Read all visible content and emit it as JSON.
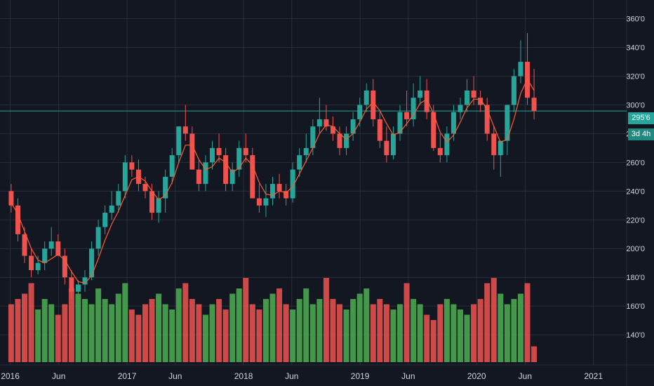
{
  "chart_data": {
    "type": "candlestick",
    "title": "",
    "xlabel": "",
    "ylabel": "",
    "ylim": [
      121,
      373
    ],
    "grid": true,
    "y_ticks": [
      "360'0",
      "340'0",
      "320'0",
      "300'0",
      "280'0",
      "260'0",
      "240'0",
      "220'0",
      "200'0",
      "180'0",
      "160'0",
      "140'0"
    ],
    "x_ticks": [
      "2016",
      "Jun",
      "2017",
      "Jun",
      "2018",
      "Jun",
      "2019",
      "Jun",
      "2020",
      "Jun",
      "2021"
    ],
    "last_price_label": "295'6",
    "countdown_label": "3d 4h",
    "colors": {
      "background": "#131722",
      "grid": "#2a2e39",
      "up": "#26a69a",
      "down": "#ef5350",
      "volume_up": "#4caf50",
      "volume_down": "#ef5350",
      "moving_average": "#ff5c33",
      "price_line": "#26a69a",
      "axis_text": "#d1d4dc"
    },
    "series": [
      {
        "name": "",
        "kind": "ohlc",
        "x": [
          "2016-01-04",
          "2016-01-25",
          "2016-02-15",
          "2016-03-07",
          "2016-03-28",
          "2016-04-18",
          "2016-05-09",
          "2016-05-30",
          "2016-06-20",
          "2016-07-11",
          "2016-08-01",
          "2016-08-22",
          "2016-09-12",
          "2016-10-03",
          "2016-10-24",
          "2016-11-14",
          "2016-12-05",
          "2016-12-26",
          "2017-01-16",
          "2017-02-06",
          "2017-02-27",
          "2017-03-20",
          "2017-04-10",
          "2017-05-01",
          "2017-05-22",
          "2017-06-12",
          "2017-07-03",
          "2017-07-24",
          "2017-08-14",
          "2017-09-04",
          "2017-09-25",
          "2017-10-16",
          "2017-11-06",
          "2017-11-27",
          "2017-12-18",
          "2018-01-08",
          "2018-01-29",
          "2018-02-19",
          "2018-03-12",
          "2018-04-02",
          "2018-04-23",
          "2018-05-14",
          "2018-06-04",
          "2018-06-25",
          "2018-07-16",
          "2018-08-06",
          "2018-08-27",
          "2018-09-17",
          "2018-10-08",
          "2018-10-29",
          "2018-11-19",
          "2018-12-10",
          "2018-12-31",
          "2019-01-21",
          "2019-02-11",
          "2019-03-04",
          "2019-03-25",
          "2019-04-15",
          "2019-05-06",
          "2019-05-27",
          "2019-06-17",
          "2019-07-08",
          "2019-07-29",
          "2019-08-19",
          "2019-09-09",
          "2019-09-30",
          "2019-10-21",
          "2019-11-11",
          "2019-12-02",
          "2019-12-23",
          "2020-01-13",
          "2020-02-03",
          "2020-02-24",
          "2020-03-16",
          "2020-04-06",
          "2020-04-27",
          "2020-05-18",
          "2020-06-08",
          "2020-06-29"
        ],
        "open": [
          240,
          230,
          210,
          195,
          185,
          190,
          200,
          205,
          195,
          180,
          170,
          175,
          180,
          200,
          215,
          225,
          230,
          240,
          260,
          255,
          245,
          240,
          225,
          235,
          250,
          265,
          285,
          280,
          255,
          245,
          260,
          270,
          265,
          245,
          255,
          270,
          265,
          235,
          230,
          235,
          245,
          240,
          235,
          255,
          265,
          270,
          285,
          290,
          285,
          280,
          270,
          280,
          290,
          300,
          310,
          290,
          275,
          265,
          280,
          295,
          290,
          305,
          310,
          295,
          270,
          265,
          280,
          295,
          300,
          310,
          305,
          300,
          280,
          265,
          275,
          300,
          320,
          330,
          305
        ],
        "high": [
          245,
          235,
          215,
          200,
          195,
          205,
          215,
          210,
          200,
          185,
          178,
          185,
          205,
          220,
          230,
          240,
          245,
          265,
          265,
          262,
          250,
          245,
          240,
          255,
          270,
          285,
          300,
          285,
          262,
          265,
          275,
          280,
          270,
          260,
          275,
          280,
          270,
          245,
          245,
          250,
          252,
          245,
          260,
          270,
          280,
          290,
          305,
          300,
          292,
          285,
          285,
          295,
          305,
          315,
          318,
          295,
          285,
          285,
          300,
          310,
          315,
          320,
          318,
          300,
          280,
          285,
          300,
          305,
          318,
          320,
          310,
          305,
          285,
          275,
          300,
          325,
          345,
          350,
          325
        ],
        "low": [
          225,
          205,
          190,
          180,
          182,
          185,
          195,
          195,
          175,
          165,
          168,
          170,
          178,
          195,
          210,
          220,
          225,
          235,
          250,
          240,
          235,
          220,
          218,
          225,
          245,
          260,
          275,
          255,
          240,
          240,
          255,
          260,
          240,
          240,
          250,
          260,
          235,
          225,
          222,
          230,
          235,
          230,
          232,
          250,
          260,
          265,
          280,
          282,
          275,
          265,
          265,
          275,
          285,
          295,
          285,
          270,
          260,
          262,
          275,
          285,
          285,
          300,
          290,
          268,
          260,
          260,
          275,
          290,
          295,
          300,
          295,
          275,
          255,
          250,
          265,
          295,
          315,
          300,
          290
        ],
        "close": [
          230,
          210,
          195,
          185,
          190,
          200,
          205,
          195,
          180,
          170,
          175,
          180,
          200,
          215,
          225,
          230,
          240,
          260,
          255,
          245,
          240,
          225,
          235,
          250,
          265,
          285,
          280,
          255,
          245,
          260,
          270,
          265,
          245,
          255,
          270,
          265,
          235,
          230,
          235,
          245,
          240,
          235,
          255,
          265,
          270,
          285,
          290,
          285,
          280,
          270,
          280,
          290,
          300,
          310,
          290,
          275,
          265,
          280,
          295,
          290,
          305,
          310,
          295,
          270,
          265,
          280,
          295,
          300,
          310,
          305,
          300,
          280,
          265,
          275,
          300,
          320,
          330,
          305,
          295.75
        ]
      },
      {
        "name": "",
        "kind": "moving_average",
        "values": [
          232,
          224,
          212,
          200,
          192,
          190,
          193,
          196,
          192,
          184,
          177,
          176,
          181,
          193,
          206,
          217,
          226,
          237,
          248,
          250,
          247,
          240,
          234,
          237,
          246,
          260,
          272,
          272,
          262,
          255,
          257,
          263,
          260,
          253,
          256,
          263,
          258,
          246,
          238,
          237,
          240,
          239,
          243,
          252,
          261,
          270,
          280,
          286,
          285,
          280,
          276,
          280,
          288,
          297,
          302,
          296,
          287,
          279,
          281,
          287,
          293,
          301,
          304,
          294,
          281,
          274,
          279,
          288,
          298,
          304,
          304,
          297,
          285,
          274,
          276,
          290,
          308,
          318,
          310
        ]
      },
      {
        "name": "",
        "kind": "volume",
        "values": [
          55,
          60,
          65,
          75,
          50,
          60,
          55,
          45,
          55,
          70,
          65,
          60,
          55,
          70,
          60,
          55,
          65,
          75,
          50,
          45,
          55,
          60,
          65,
          55,
          50,
          70,
          75,
          60,
          55,
          45,
          55,
          60,
          50,
          65,
          70,
          80,
          55,
          50,
          60,
          65,
          70,
          55,
          50,
          60,
          70,
          55,
          60,
          80,
          60,
          55,
          50,
          60,
          65,
          70,
          55,
          60,
          55,
          50,
          55,
          75,
          60,
          55,
          45,
          40,
          55,
          60,
          55,
          50,
          45,
          55,
          60,
          75,
          80,
          65,
          55,
          60,
          65,
          75,
          15
        ]
      }
    ]
  }
}
